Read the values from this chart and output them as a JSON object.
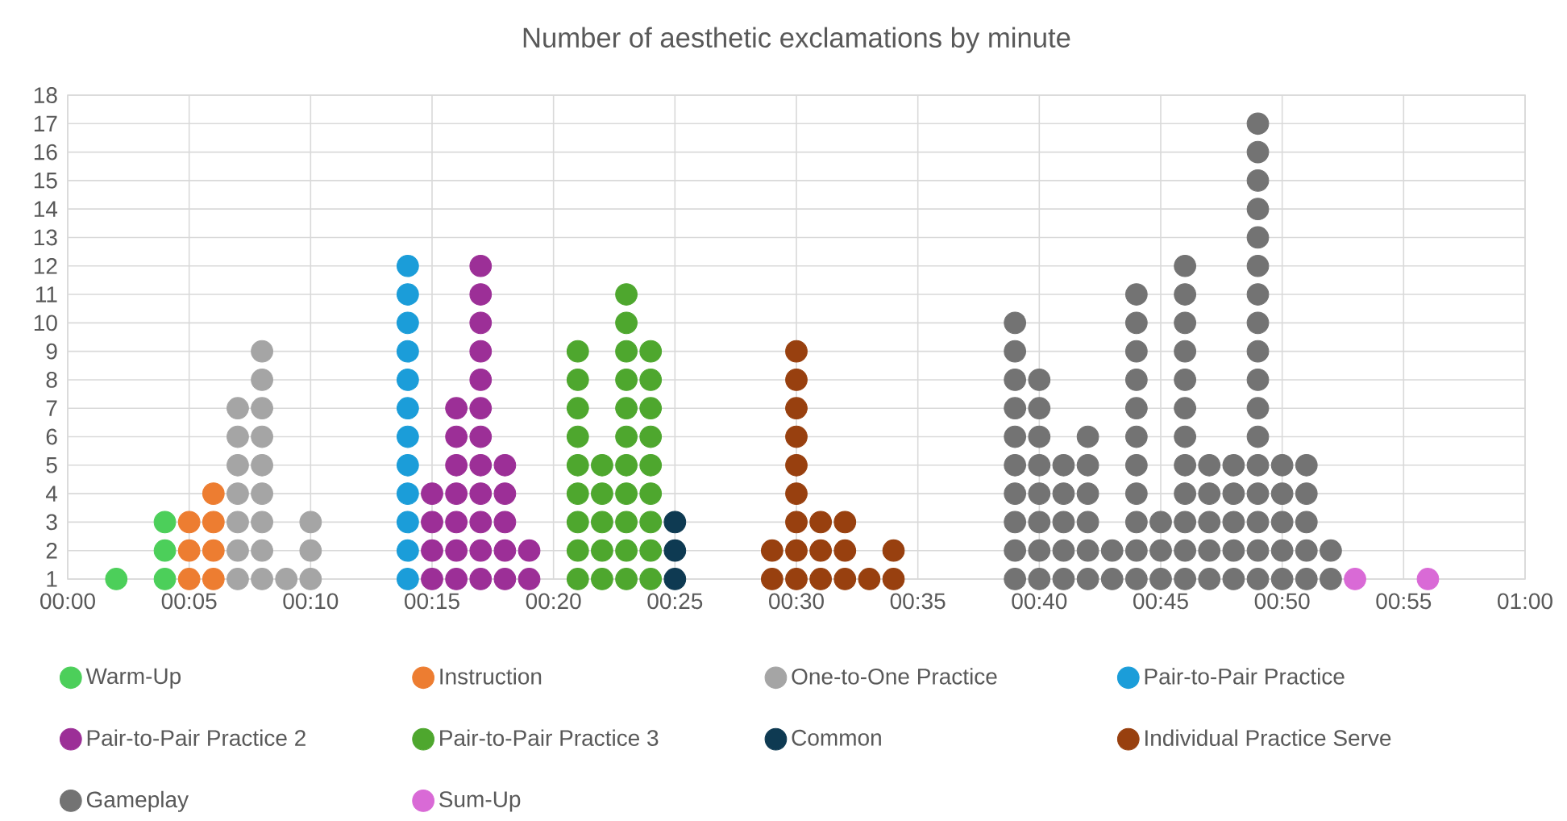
{
  "chart_data": {
    "type": "scatter",
    "title": "Number of aesthetic exclamations by minute",
    "xlim": [
      0,
      60
    ],
    "ylim": [
      1,
      18
    ],
    "xticks": [
      {
        "value": 0,
        "label": "00:00"
      },
      {
        "value": 5,
        "label": "00:05"
      },
      {
        "value": 10,
        "label": "00:10"
      },
      {
        "value": 15,
        "label": "00:15"
      },
      {
        "value": 20,
        "label": "00:20"
      },
      {
        "value": 25,
        "label": "00:25"
      },
      {
        "value": 30,
        "label": "00:30"
      },
      {
        "value": 35,
        "label": "00:35"
      },
      {
        "value": 40,
        "label": "00:40"
      },
      {
        "value": 45,
        "label": "00:45"
      },
      {
        "value": 50,
        "label": "00:50"
      },
      {
        "value": 55,
        "label": "00:55"
      },
      {
        "value": 60,
        "label": "01:00"
      }
    ],
    "yticks": [
      1,
      2,
      3,
      4,
      5,
      6,
      7,
      8,
      9,
      10,
      11,
      12,
      13,
      14,
      15,
      16,
      17,
      18
    ],
    "grid": true,
    "legend": "bottom",
    "marker": "circle",
    "series": [
      {
        "name": "Warm-Up",
        "color": "#4ccf5a",
        "x": [
          2,
          4,
          4,
          4
        ],
        "values": [
          1,
          1,
          2,
          3
        ]
      },
      {
        "name": "Instruction",
        "color": "#ed7d31",
        "x": [
          5,
          5,
          5,
          6,
          6,
          6,
          6
        ],
        "values": [
          1,
          2,
          3,
          1,
          2,
          3,
          4
        ]
      },
      {
        "name": "One-to-One Practice",
        "color": "#a5a5a5",
        "x": [
          7,
          7,
          7,
          7,
          7,
          7,
          7,
          8,
          8,
          8,
          8,
          8,
          8,
          8,
          8,
          8,
          9,
          10,
          10,
          10
        ],
        "values": [
          1,
          2,
          3,
          4,
          5,
          6,
          7,
          1,
          2,
          3,
          4,
          5,
          6,
          7,
          8,
          9,
          1,
          1,
          2,
          3
        ]
      },
      {
        "name": "Pair-to-Pair Practice",
        "color": "#1b9dd9",
        "x": [
          14,
          14,
          14,
          14,
          14,
          14,
          14,
          14,
          14,
          14,
          14,
          14
        ],
        "values": [
          1,
          2,
          3,
          4,
          5,
          6,
          7,
          8,
          9,
          10,
          11,
          12
        ]
      },
      {
        "name": "Pair-to-Pair Practice 2",
        "color": "#9c2f97",
        "x": [
          15,
          15,
          15,
          15,
          16,
          16,
          16,
          16,
          16,
          16,
          16,
          17,
          17,
          17,
          17,
          17,
          17,
          17,
          17,
          17,
          17,
          17,
          17,
          18,
          18,
          18,
          18,
          18,
          19,
          19
        ],
        "values": [
          1,
          2,
          3,
          4,
          1,
          2,
          3,
          4,
          5,
          6,
          7,
          1,
          2,
          3,
          4,
          5,
          6,
          7,
          8,
          9,
          10,
          11,
          12,
          1,
          2,
          3,
          4,
          5,
          1,
          2
        ]
      },
      {
        "name": "Pair-to-Pair Practice 3",
        "color": "#4ea72e",
        "x": [
          21,
          21,
          21,
          21,
          21,
          21,
          21,
          21,
          21,
          22,
          22,
          22,
          22,
          22,
          23,
          23,
          23,
          23,
          23,
          23,
          23,
          23,
          23,
          23,
          23,
          24,
          24,
          24,
          24,
          24,
          24,
          24,
          24,
          24
        ],
        "values": [
          1,
          2,
          3,
          4,
          5,
          6,
          7,
          8,
          9,
          1,
          2,
          3,
          4,
          5,
          1,
          2,
          3,
          4,
          5,
          6,
          7,
          8,
          9,
          10,
          11,
          1,
          2,
          3,
          4,
          5,
          6,
          7,
          8,
          9
        ]
      },
      {
        "name": "Common",
        "color": "#0e3a52",
        "x": [
          25,
          25,
          25
        ],
        "values": [
          1,
          2,
          3
        ]
      },
      {
        "name": "Individual Practice Serve",
        "color": "#98400f",
        "x": [
          29,
          29,
          30,
          30,
          30,
          30,
          30,
          30,
          30,
          30,
          30,
          31,
          31,
          31,
          32,
          32,
          32,
          33,
          34,
          34
        ],
        "values": [
          1,
          2,
          1,
          2,
          3,
          4,
          5,
          6,
          7,
          8,
          9,
          1,
          2,
          3,
          1,
          2,
          3,
          1,
          1,
          2
        ]
      },
      {
        "name": "Gameplay",
        "color": "#737373",
        "x": [
          39,
          39,
          39,
          39,
          39,
          39,
          39,
          39,
          39,
          39,
          40,
          40,
          40,
          40,
          40,
          40,
          40,
          40,
          41,
          41,
          41,
          41,
          41,
          42,
          42,
          42,
          42,
          42,
          42,
          43,
          43,
          44,
          44,
          44,
          44,
          44,
          44,
          44,
          44,
          44,
          44,
          44,
          45,
          45,
          45,
          46,
          46,
          46,
          46,
          46,
          46,
          46,
          46,
          46,
          46,
          46,
          46,
          47,
          47,
          47,
          47,
          47,
          48,
          48,
          48,
          48,
          48,
          49,
          49,
          49,
          49,
          49,
          49,
          49,
          49,
          49,
          49,
          49,
          49,
          49,
          49,
          49,
          49,
          49,
          50,
          50,
          50,
          50,
          50,
          51,
          51,
          51,
          51,
          51,
          52,
          52
        ],
        "values": [
          1,
          2,
          3,
          4,
          5,
          6,
          7,
          8,
          9,
          10,
          1,
          2,
          3,
          4,
          5,
          6,
          7,
          8,
          1,
          2,
          3,
          4,
          5,
          1,
          2,
          3,
          4,
          5,
          6,
          1,
          2,
          1,
          2,
          3,
          4,
          5,
          6,
          7,
          8,
          9,
          10,
          11,
          1,
          2,
          3,
          1,
          2,
          3,
          4,
          5,
          6,
          7,
          8,
          9,
          10,
          11,
          12,
          1,
          2,
          3,
          4,
          5,
          1,
          2,
          3,
          4,
          5,
          1,
          2,
          3,
          4,
          5,
          6,
          7,
          8,
          9,
          10,
          11,
          12,
          13,
          14,
          15,
          16,
          17,
          1,
          2,
          3,
          4,
          5,
          1,
          2,
          3,
          4,
          5,
          1,
          2
        ]
      },
      {
        "name": "Sum-Up",
        "color": "#d96ad6",
        "x": [
          53,
          56
        ],
        "values": [
          1,
          1
        ]
      }
    ]
  }
}
